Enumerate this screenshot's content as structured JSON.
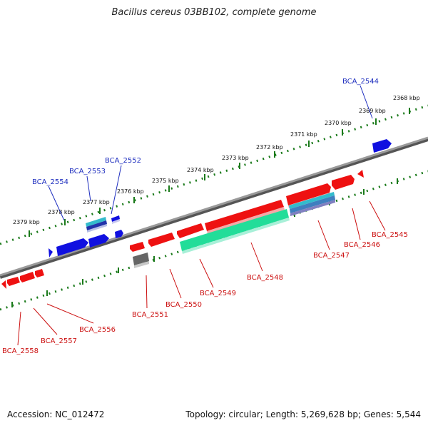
{
  "title": "Bacillus cereus 03BB102, complete genome",
  "accession": "Accession: NC_012472",
  "summary": "Topology: circular; Length: 5,269,628 bp; Genes: 5,544",
  "scale_ticks": [
    "2368 kbp",
    "2369 kbp",
    "2370 kbp",
    "2371 kbp",
    "2372 kbp",
    "2373 kbp",
    "2374 kbp",
    "2375 kbp",
    "2376 kbp",
    "2377 kbp",
    "2378 kbp",
    "2379 kbp"
  ],
  "forward_genes": [
    {
      "name": "BCA_2544"
    },
    {
      "name": "BCA_2552"
    },
    {
      "name": "BCA_2553"
    },
    {
      "name": "BCA_2554"
    }
  ],
  "reverse_genes": [
    {
      "name": "BCA_2545"
    },
    {
      "name": "BCA_2546"
    },
    {
      "name": "BCA_2547"
    },
    {
      "name": "BCA_2548"
    },
    {
      "name": "BCA_2549"
    },
    {
      "name": "BCA_2550"
    },
    {
      "name": "BCA_2551"
    },
    {
      "name": "BCA_2556"
    },
    {
      "name": "BCA_2557"
    },
    {
      "name": "BCA_2558"
    }
  ],
  "colors": {
    "forward": "#1010e0",
    "reverse": "#ee1111",
    "backbone": "#888888",
    "scale": "#1a7a1a",
    "feature_teal": "#22dd99",
    "feature_cyan": "#33bbcc",
    "feature_gray": "#666666"
  }
}
